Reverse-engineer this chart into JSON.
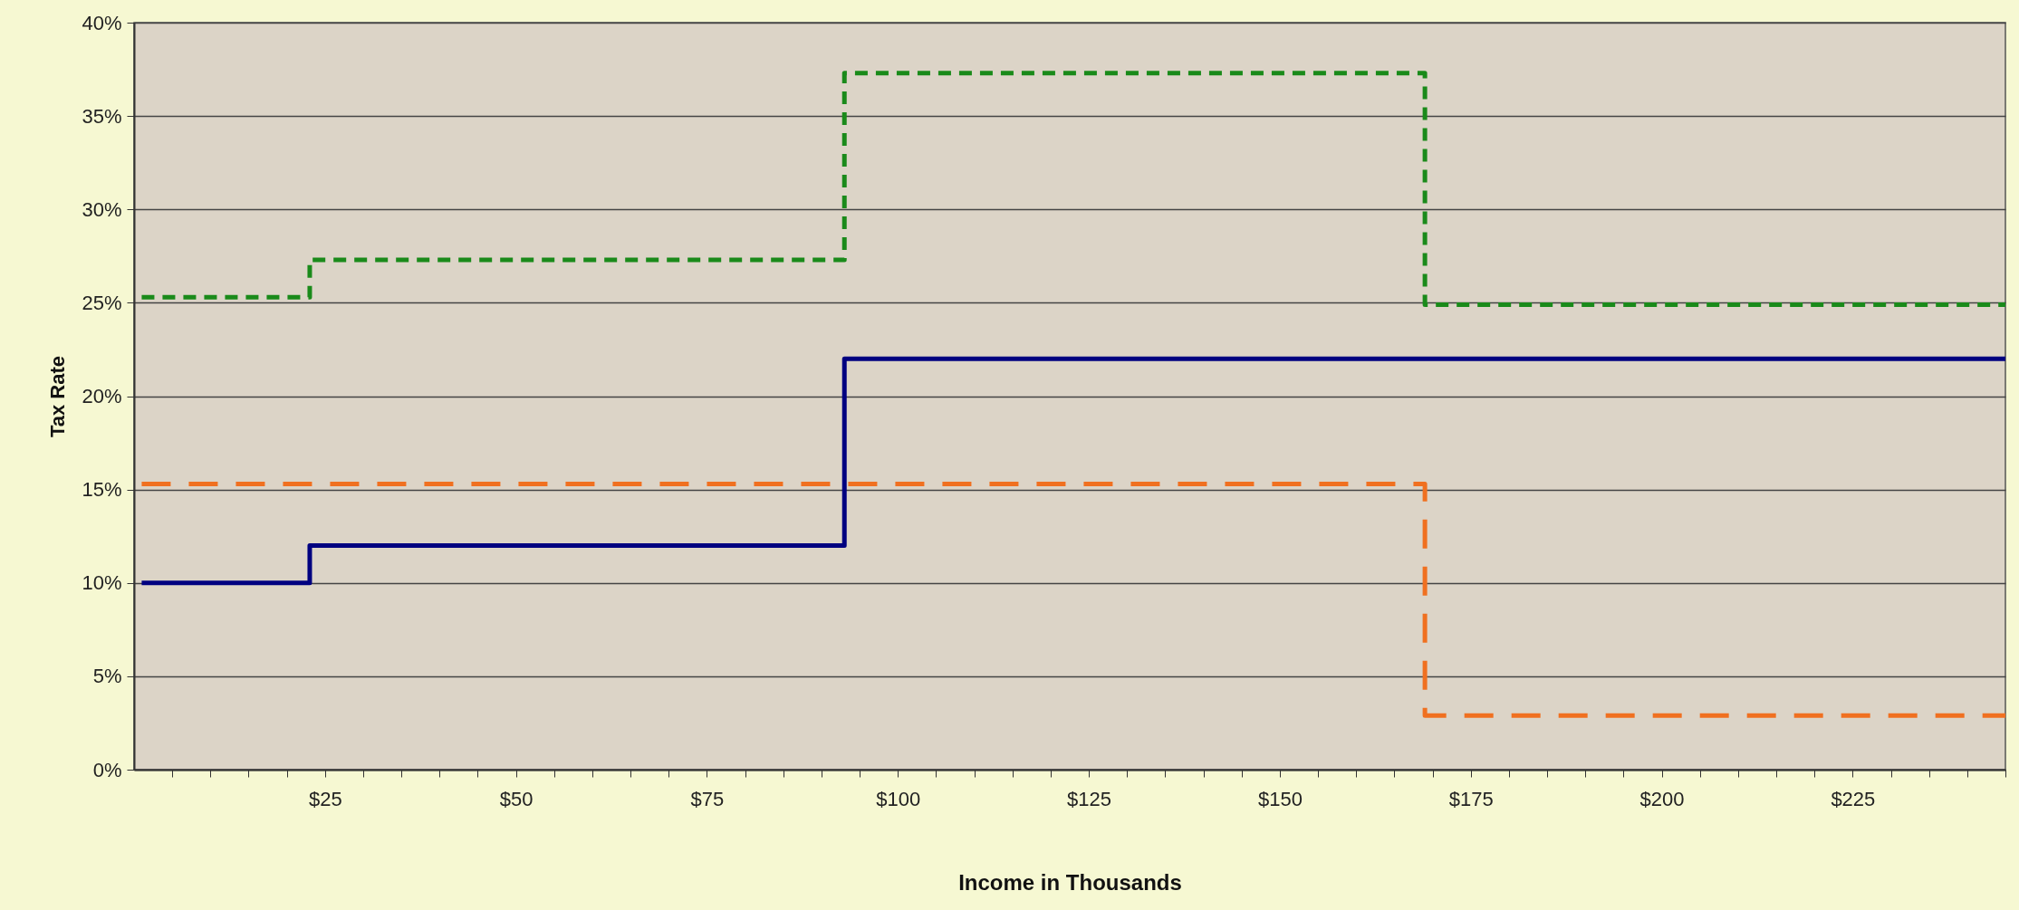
{
  "chart_data": {
    "type": "step",
    "xlabel": "Income in Thousands",
    "ylabel": "Tax Rate",
    "xlim": [
      0,
      245
    ],
    "xticks": [
      {
        "value": 5,
        "label": null
      },
      {
        "value": 10,
        "label": null
      },
      {
        "value": 15,
        "label": null
      },
      {
        "value": 20,
        "label": null
      },
      {
        "value": 25,
        "label": "$25"
      },
      {
        "value": 30,
        "label": null
      },
      {
        "value": 35,
        "label": null
      },
      {
        "value": 40,
        "label": null
      },
      {
        "value": 45,
        "label": null
      },
      {
        "value": 50,
        "label": "$50"
      },
      {
        "value": 55,
        "label": null
      },
      {
        "value": 60,
        "label": null
      },
      {
        "value": 65,
        "label": null
      },
      {
        "value": 70,
        "label": null
      },
      {
        "value": 75,
        "label": "$75"
      },
      {
        "value": 80,
        "label": null
      },
      {
        "value": 85,
        "label": null
      },
      {
        "value": 90,
        "label": null
      },
      {
        "value": 95,
        "label": null
      },
      {
        "value": 100,
        "label": "$100"
      },
      {
        "value": 105,
        "label": null
      },
      {
        "value": 110,
        "label": null
      },
      {
        "value": 115,
        "label": null
      },
      {
        "value": 120,
        "label": null
      },
      {
        "value": 125,
        "label": "$125"
      },
      {
        "value": 130,
        "label": null
      },
      {
        "value": 135,
        "label": null
      },
      {
        "value": 140,
        "label": null
      },
      {
        "value": 145,
        "label": null
      },
      {
        "value": 150,
        "label": "$150"
      },
      {
        "value": 155,
        "label": null
      },
      {
        "value": 160,
        "label": null
      },
      {
        "value": 165,
        "label": null
      },
      {
        "value": 170,
        "label": null
      },
      {
        "value": 175,
        "label": "$175"
      },
      {
        "value": 180,
        "label": null
      },
      {
        "value": 185,
        "label": null
      },
      {
        "value": 190,
        "label": null
      },
      {
        "value": 195,
        "label": null
      },
      {
        "value": 200,
        "label": "$200"
      },
      {
        "value": 205,
        "label": null
      },
      {
        "value": 210,
        "label": null
      },
      {
        "value": 215,
        "label": null
      },
      {
        "value": 220,
        "label": null
      },
      {
        "value": 225,
        "label": "$225"
      },
      {
        "value": 230,
        "label": null
      },
      {
        "value": 235,
        "label": null
      },
      {
        "value": 240,
        "label": null
      },
      {
        "value": 245,
        "label": null
      }
    ],
    "ylim": [
      0,
      40
    ],
    "yticks": [
      {
        "value": 0,
        "label": "0%"
      },
      {
        "value": 5,
        "label": "5%"
      },
      {
        "value": 10,
        "label": "10%"
      },
      {
        "value": 15,
        "label": "15%"
      },
      {
        "value": 20,
        "label": "20%"
      },
      {
        "value": 25,
        "label": "25%"
      },
      {
        "value": 30,
        "label": "30%"
      },
      {
        "value": 35,
        "label": "35%"
      },
      {
        "value": 40,
        "label": "40%"
      }
    ],
    "grid": "y",
    "series": [
      {
        "color": "#1a8a1a",
        "line_style": "dashed",
        "x": [
          1,
          23,
          93,
          169,
          245
        ],
        "values": [
          25.3,
          27.3,
          37.3,
          24.9,
          24.9
        ]
      },
      {
        "color": "#000080",
        "line_style": "solid",
        "x": [
          1,
          23,
          93,
          245
        ],
        "values": [
          10,
          12,
          22,
          22
        ]
      },
      {
        "color": "#f07020",
        "line_style": "dashed",
        "x": [
          1,
          169,
          245
        ],
        "values": [
          15.3,
          2.9,
          2.9
        ]
      }
    ]
  }
}
